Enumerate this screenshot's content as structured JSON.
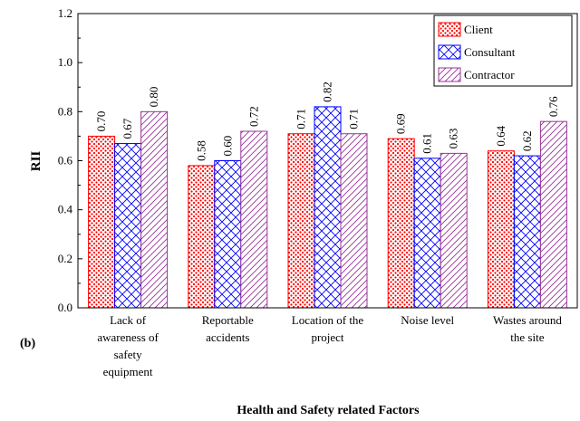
{
  "chart_data": {
    "type": "bar",
    "panel_label": "(b)",
    "xlabel": "Health and Safety  related Factors",
    "ylabel": "RII",
    "categories": [
      "Lack of awareness of safety equipment",
      "Reportable accidents",
      "Location of the project",
      "Noise level",
      "Wastes around the site"
    ],
    "series": [
      {
        "name": "Client",
        "color": "#ff0000",
        "pattern": "dots",
        "values": [
          0.7,
          0.58,
          0.71,
          0.69,
          0.64
        ],
        "value_labels": [
          "0.70",
          "0.58",
          "0.71",
          "0.69",
          "0.64"
        ]
      },
      {
        "name": "Consultant",
        "color": "#0000ff",
        "pattern": "crosshatch",
        "values": [
          0.67,
          0.6,
          0.82,
          0.61,
          0.62
        ],
        "value_labels": [
          "0.67",
          "0.60",
          "0.82",
          "0.61",
          "0.62"
        ]
      },
      {
        "name": "Contractor",
        "color": "#993399",
        "pattern": "diagonal",
        "values": [
          0.8,
          0.72,
          0.71,
          0.63,
          0.76
        ],
        "value_labels": [
          "0.80",
          "0.72",
          "0.71",
          "0.63",
          "0.76"
        ]
      }
    ],
    "ylim": [
      0,
      1.2
    ],
    "yticks": [
      {
        "value": 0,
        "label": "0.0"
      },
      {
        "value": 0.2,
        "label": "0.2"
      },
      {
        "value": 0.4,
        "label": "0.4"
      },
      {
        "value": 0.6,
        "label": "0.6"
      },
      {
        "value": 0.8,
        "label": "0.8"
      },
      {
        "value": 1,
        "label": "1.0"
      },
      {
        "value": 1.2,
        "label": "1.2"
      }
    ],
    "legend": "upper right"
  }
}
